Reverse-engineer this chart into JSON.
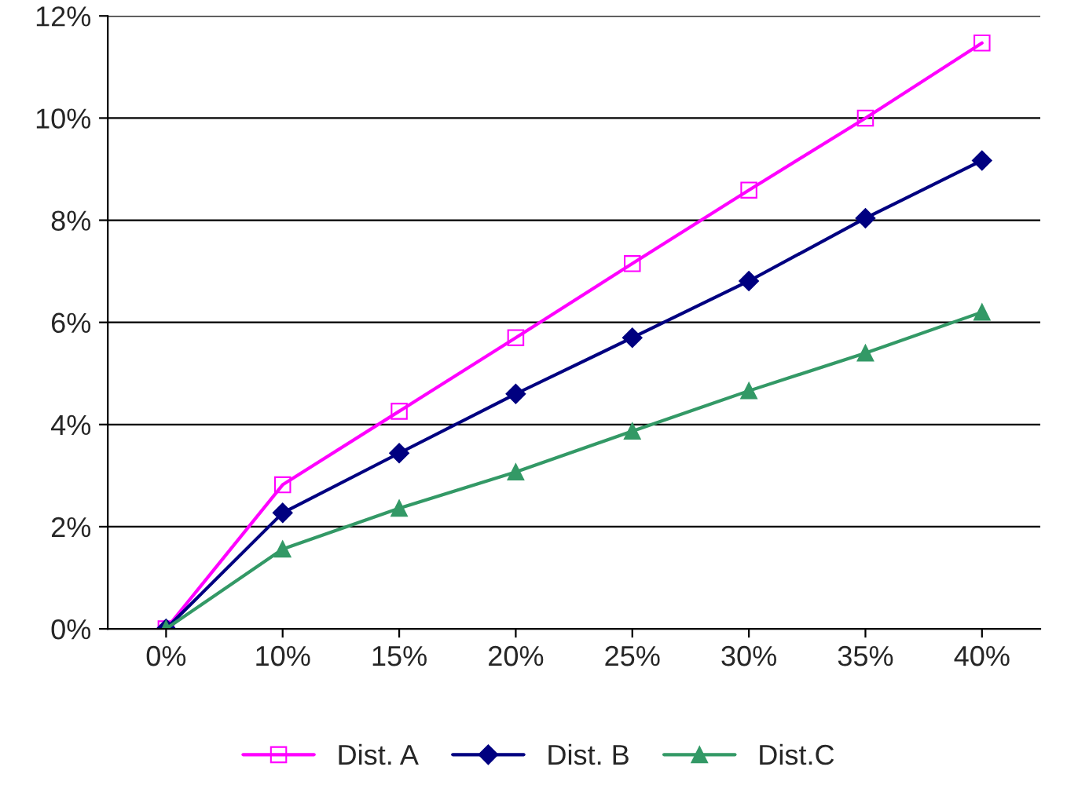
{
  "chart_data": {
    "type": "line",
    "categories": [
      "0%",
      "10%",
      "15%",
      "20%",
      "25%",
      "30%",
      "35%",
      "40%"
    ],
    "series": [
      {
        "name": "Dist. A",
        "color": "#ff00ff",
        "marker": "square",
        "values": [
          0,
          2.82,
          4.26,
          5.7,
          7.15,
          8.59,
          10.0,
          11.47
        ]
      },
      {
        "name": "Dist. B",
        "color": "#000080",
        "marker": "diamond",
        "values": [
          0,
          2.27,
          3.44,
          4.6,
          5.7,
          6.81,
          8.04,
          9.17
        ]
      },
      {
        "name": "Dist.C",
        "color": "#339966",
        "marker": "triangle",
        "values": [
          0,
          1.56,
          2.36,
          3.07,
          3.87,
          4.66,
          5.4,
          6.2
        ]
      }
    ],
    "ylim": [
      0,
      12
    ],
    "yticks": [
      {
        "value": 0,
        "label": "0%"
      },
      {
        "value": 2,
        "label": "2%"
      },
      {
        "value": 4,
        "label": "4%"
      },
      {
        "value": 6,
        "label": "6%"
      },
      {
        "value": 8,
        "label": "8%"
      },
      {
        "value": 10,
        "label": "10%"
      },
      {
        "value": 12,
        "label": "12%"
      }
    ],
    "grid": "y",
    "legend": "bottom",
    "line_style": "solid"
  }
}
